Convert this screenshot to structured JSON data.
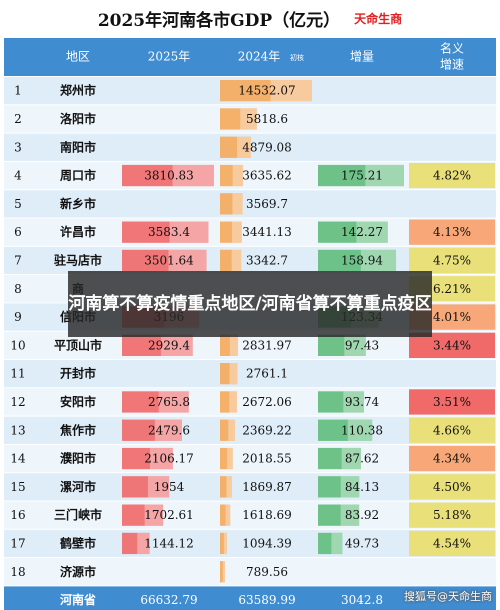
{
  "title": "2025年河南各市GDP（亿元）",
  "brand": "天命生商",
  "overlay": "河南算不算疫情重点地区/河南省算不算重点疫区",
  "footer_mark": "搜狐号@天命生商",
  "chart_data": {
    "type": "table",
    "title": "2025年河南各市GDP（亿元）",
    "columns": {
      "rank": "",
      "region": "地区",
      "gdp2025": "2025年",
      "gdp2024": "2024年",
      "gdp2024_note": "初核",
      "increase": "增量",
      "growth": "名义增速"
    },
    "colors": {
      "header": "#3f8cd0",
      "row_odd": "#deedf8",
      "row_even": "#eef6fc",
      "total": "#3f8cd0",
      "bar2025": "#f06868",
      "bar2024": "#f5a85a",
      "bar_increase": "#5fbd7b",
      "growth_red": "#f06a6a",
      "growth_orange": "#f8a878",
      "growth_yellow": "#eae07a"
    },
    "rows": [
      {
        "rank": "1",
        "region": "郑州市",
        "gdp2025": "",
        "gdp2024": "14532.07",
        "increase": "",
        "growth": ""
      },
      {
        "rank": "2",
        "region": "洛阳市",
        "gdp2025": "",
        "gdp2024": "5818.6",
        "increase": "",
        "growth": ""
      },
      {
        "rank": "3",
        "region": "南阳市",
        "gdp2025": "",
        "gdp2024": "4879.08",
        "increase": "",
        "growth": ""
      },
      {
        "rank": "4",
        "region": "周口市",
        "gdp2025": "3810.83",
        "gdp2024": "3635.62",
        "increase": "175.21",
        "growth": "4.82%"
      },
      {
        "rank": "5",
        "region": "新乡市",
        "gdp2025": "",
        "gdp2024": "3569.7",
        "increase": "",
        "growth": ""
      },
      {
        "rank": "6",
        "region": "许昌市",
        "gdp2025": "3583.4",
        "gdp2024": "3441.13",
        "increase": "142.27",
        "growth": "4.13%"
      },
      {
        "rank": "7",
        "region": "驻马店市",
        "gdp2025": "3501.64",
        "gdp2024": "3342.7",
        "increase": "158.94",
        "growth": "4.75%"
      },
      {
        "rank": "8",
        "region": "商",
        "gdp2025": "",
        "gdp2024": "",
        "increase": "",
        "growth": "6.21%"
      },
      {
        "rank": "9",
        "region": "信阳市",
        "gdp2025": "3196",
        "gdp2024": "",
        "increase": "123.34",
        "growth": "4.01%"
      },
      {
        "rank": "10",
        "region": "平顶山市",
        "gdp2025": "2929.4",
        "gdp2024": "2831.97",
        "increase": "97.43",
        "growth": "3.44%"
      },
      {
        "rank": "11",
        "region": "开封市",
        "gdp2025": "",
        "gdp2024": "2761.1",
        "increase": "",
        "growth": ""
      },
      {
        "rank": "12",
        "region": "安阳市",
        "gdp2025": "2765.8",
        "gdp2024": "2672.06",
        "increase": "93.74",
        "growth": "3.51%"
      },
      {
        "rank": "13",
        "region": "焦作市",
        "gdp2025": "2479.6",
        "gdp2024": "2369.22",
        "increase": "110.38",
        "growth": "4.66%"
      },
      {
        "rank": "14",
        "region": "濮阳市",
        "gdp2025": "2106.17",
        "gdp2024": "2018.55",
        "increase": "87.62",
        "growth": "4.34%"
      },
      {
        "rank": "15",
        "region": "漯河市",
        "gdp2025": "1954",
        "gdp2024": "1869.87",
        "increase": "84.13",
        "growth": "4.50%"
      },
      {
        "rank": "16",
        "region": "三门峡市",
        "gdp2025": "1702.61",
        "gdp2024": "1618.69",
        "increase": "83.92",
        "growth": "5.18%"
      },
      {
        "rank": "17",
        "region": "鹤壁市",
        "gdp2025": "1144.12",
        "gdp2024": "1094.39",
        "increase": "49.73",
        "growth": "4.54%"
      },
      {
        "rank": "18",
        "region": "济源市",
        "gdp2025": "",
        "gdp2024": "789.56",
        "increase": "",
        "growth": ""
      }
    ],
    "total": {
      "rank": "",
      "region": "河南省",
      "gdp2025": "66632.79",
      "gdp2024": "63589.99",
      "increase": "3042.8",
      "growth": ""
    },
    "bar_max": {
      "gdp2025": 3810.83,
      "gdp2024": 14532.07,
      "increase": 175.21
    }
  }
}
